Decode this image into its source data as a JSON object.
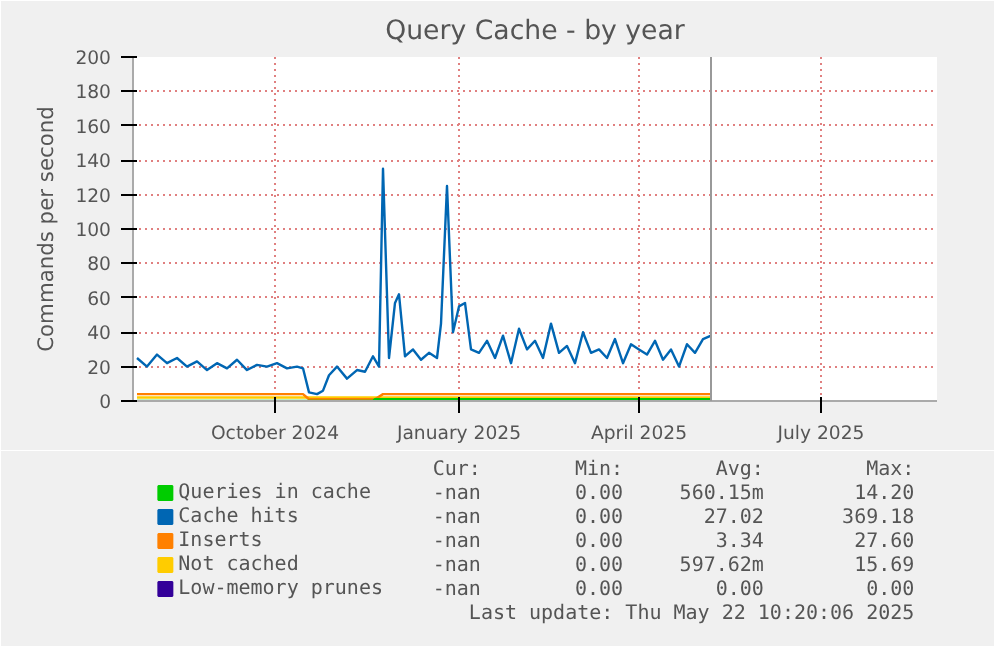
{
  "chart_data": {
    "type": "line",
    "title": "Query Cache - by year",
    "ylabel": "Commands per second",
    "xlim": [
      "2024-07-22",
      "2025-08-28"
    ],
    "ylim": [
      0,
      200
    ],
    "xticks": [
      {
        "value": "2024-10-01",
        "label": "October 2024"
      },
      {
        "value": "2025-01-01",
        "label": "January 2025"
      },
      {
        "value": "2025-04-01",
        "label": "April 2025"
      },
      {
        "value": "2025-07-01",
        "label": "July 2025"
      }
    ],
    "yticks": [
      0,
      20,
      40,
      60,
      80,
      100,
      120,
      140,
      160,
      180,
      200
    ],
    "grid": true,
    "legend": "bottom left",
    "marker": "none",
    "line_style": "solid",
    "series": [
      {
        "name": "Queries in cache",
        "color": "#00cc00",
        "x": [
          "2024-07-24",
          "2024-11-19",
          "2024-11-20",
          "2025-02-01",
          "2025-03-15",
          "2025-05-07"
        ],
        "values": [
          0,
          0,
          1,
          1,
          1,
          1
        ]
      },
      {
        "name": "Cache hits",
        "color": "#0066b3",
        "x": [
          "2024-07-24",
          "2024-07-29",
          "2024-08-03",
          "2024-08-08",
          "2024-08-13",
          "2024-08-18",
          "2024-08-23",
          "2024-08-28",
          "2024-09-02",
          "2024-09-07",
          "2024-09-12",
          "2024-09-17",
          "2024-09-22",
          "2024-09-27",
          "2024-10-02",
          "2024-10-07",
          "2024-10-12",
          "2024-10-15",
          "2024-10-18",
          "2024-10-22",
          "2024-10-25",
          "2024-10-28",
          "2024-11-01",
          "2024-11-06",
          "2024-11-11",
          "2024-11-15",
          "2024-11-19",
          "2024-11-22",
          "2024-11-24",
          "2024-11-27",
          "2024-11-30",
          "2024-12-02",
          "2024-12-05",
          "2024-12-09",
          "2024-12-13",
          "2024-12-17",
          "2024-12-21",
          "2024-12-23",
          "2024-12-26",
          "2024-12-29",
          "2025-01-01",
          "2025-01-04",
          "2025-01-07",
          "2025-01-11",
          "2025-01-15",
          "2025-01-19",
          "2025-01-23",
          "2025-01-27",
          "2025-01-31",
          "2025-02-04",
          "2025-02-08",
          "2025-02-12",
          "2025-02-16",
          "2025-02-20",
          "2025-02-24",
          "2025-02-28",
          "2025-03-04",
          "2025-03-08",
          "2025-03-12",
          "2025-03-16",
          "2025-03-20",
          "2025-03-24",
          "2025-03-28",
          "2025-04-01",
          "2025-04-05",
          "2025-04-09",
          "2025-04-13",
          "2025-04-17",
          "2025-04-21",
          "2025-04-25",
          "2025-04-29",
          "2025-05-03",
          "2025-05-07"
        ],
        "values": [
          25,
          20,
          27,
          22,
          25,
          20,
          23,
          18,
          22,
          19,
          24,
          18,
          21,
          20,
          22,
          19,
          20,
          19,
          5,
          4,
          6,
          15,
          20,
          13,
          18,
          17,
          26,
          20,
          135,
          25,
          57,
          62,
          26,
          30,
          24,
          28,
          25,
          45,
          125,
          40,
          55,
          57,
          30,
          28,
          35,
          25,
          38,
          22,
          42,
          30,
          35,
          25,
          45,
          28,
          32,
          22,
          40,
          28,
          30,
          25,
          36,
          22,
          33,
          30,
          27,
          35,
          24,
          30,
          20,
          33,
          28,
          36,
          38
        ]
      },
      {
        "name": "Inserts",
        "color": "#ff8000",
        "x": [
          "2024-07-24",
          "2024-09-01",
          "2024-10-15",
          "2024-10-18",
          "2024-11-20",
          "2024-11-24",
          "2025-01-01",
          "2025-02-15",
          "2025-03-20",
          "2025-05-07"
        ],
        "values": [
          4,
          4,
          4,
          1,
          1,
          4,
          4,
          4,
          4,
          4
        ]
      },
      {
        "name": "Not cached",
        "color": "#ffcc00",
        "x": [
          "2024-07-24",
          "2024-10-01",
          "2024-11-20",
          "2025-01-01",
          "2025-03-01",
          "2025-05-07"
        ],
        "values": [
          2,
          2,
          2,
          2,
          2,
          2
        ]
      },
      {
        "name": "Low-memory prunes",
        "color": "#330099"
      }
    ],
    "ref_lines": [
      {
        "axis": "x",
        "value": "2025-05-07",
        "color": "#999999"
      }
    ],
    "annotations": [
      "Cur: Min: Avg: Max:",
      "-nan 0.00 560.15m 14.20",
      "-nan 0.00 27.02 369.18",
      "-nan 0.00 3.34 27.60",
      "-nan 0.00 597.62m 15.69",
      "-nan 0.00 0.00 0.00",
      "Last update: Thu May 22 10:20:06 2025"
    ]
  }
}
